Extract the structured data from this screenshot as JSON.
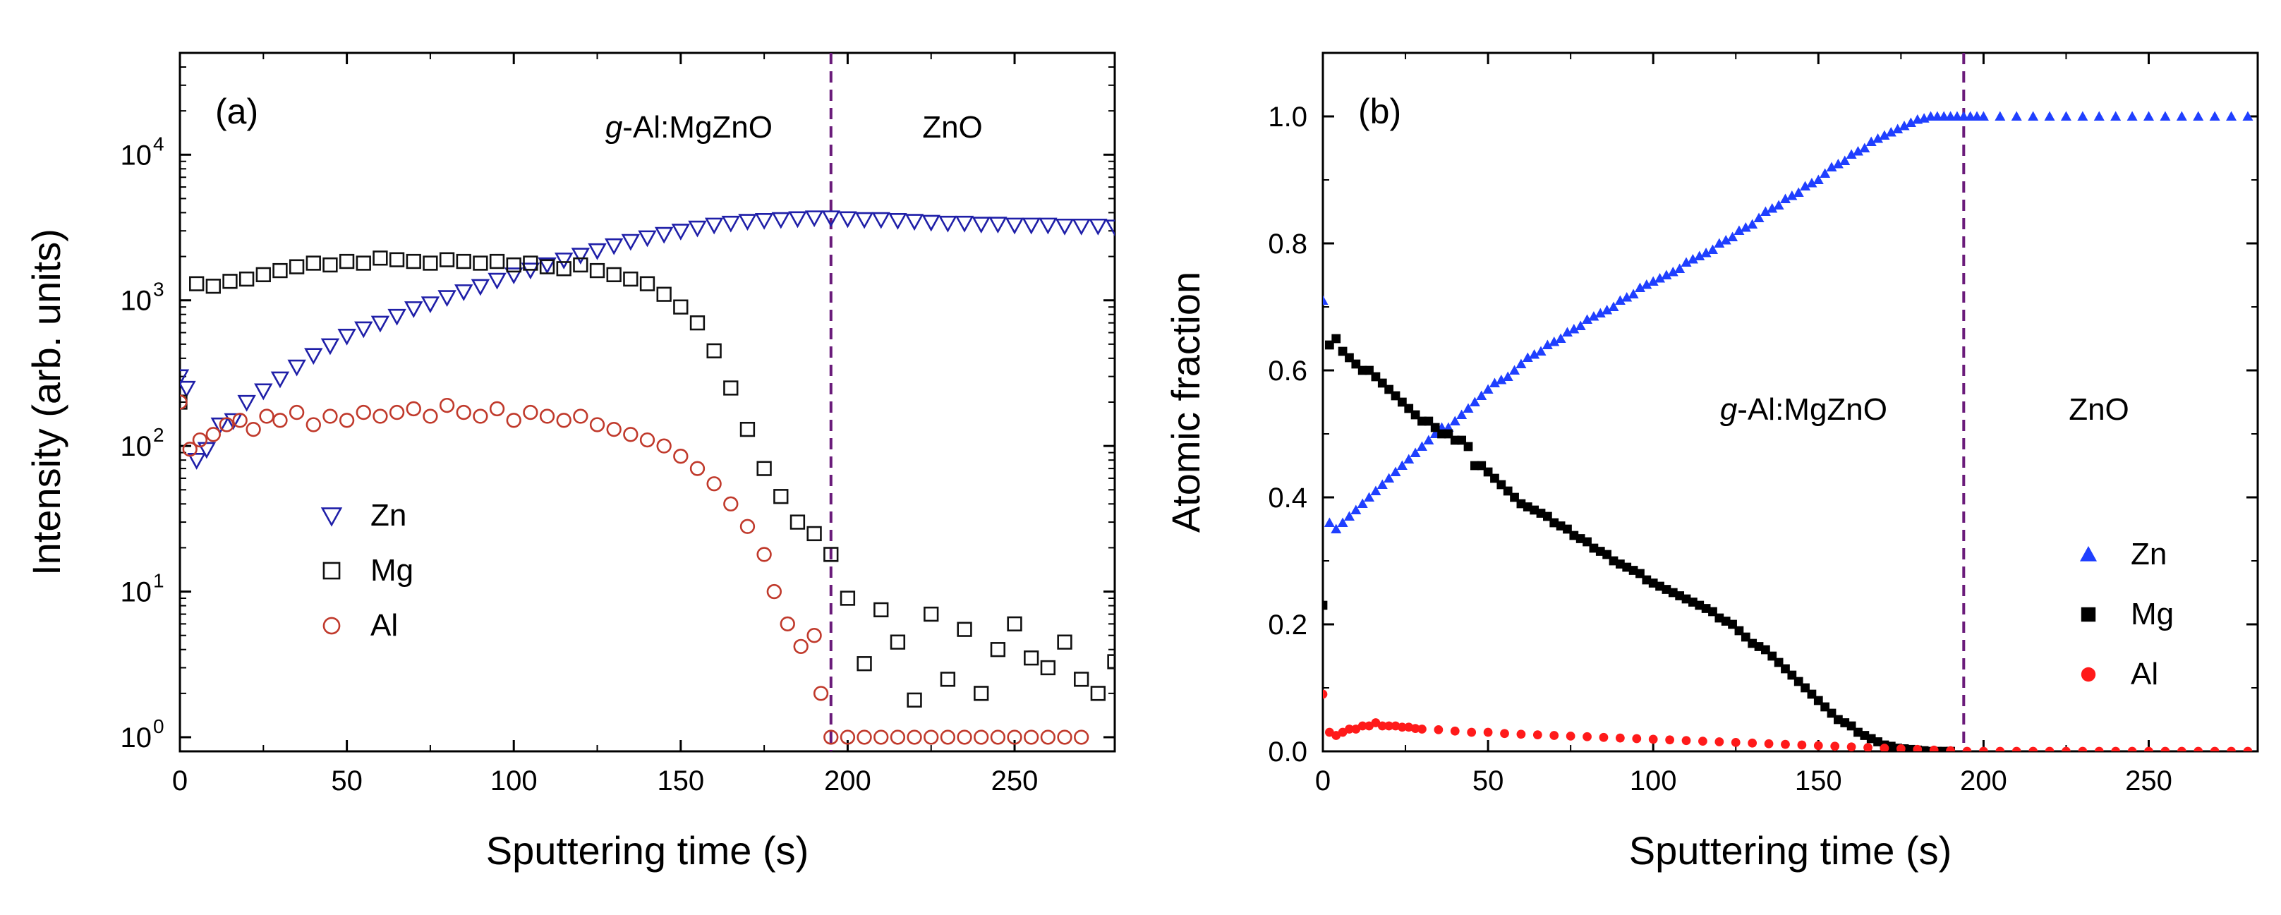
{
  "figure": {
    "panels": [
      "(a)",
      "(b)"
    ]
  },
  "chart_data": [
    {
      "type": "scatter",
      "panel_label": "(a)",
      "xlabel": "Sputtering time (s)",
      "ylabel": "Intensity (arb. units)",
      "xlim": [
        0,
        280
      ],
      "ylim": [
        0.8,
        50000
      ],
      "yscale": "log",
      "x_ticks": [
        0,
        50,
        100,
        150,
        200,
        250
      ],
      "x_tick_labels": [
        "0",
        "50",
        "100",
        "150",
        "200",
        "250"
      ],
      "y_ticks": [
        1,
        10,
        100,
        1000,
        10000
      ],
      "y_tick_bases": [
        "10",
        "10",
        "10",
        "10",
        "10"
      ],
      "y_tick_exponents": [
        "0",
        "1",
        "2",
        "3",
        "4"
      ],
      "boundary_x": 195,
      "regions": [
        {
          "prefix": "g",
          "rest": "-Al:MgZnO"
        },
        {
          "prefix": "",
          "rest": "ZnO"
        }
      ],
      "legend": [
        "Zn",
        "Mg",
        "Al"
      ],
      "legend_position": "center-left",
      "series": [
        {
          "name": "Zn",
          "marker": "open-triangle-down",
          "color": "#1f1fa8",
          "x": [
            0,
            2,
            5,
            8,
            12,
            16,
            20,
            25,
            30,
            35,
            40,
            45,
            50,
            55,
            60,
            65,
            70,
            75,
            80,
            85,
            90,
            95,
            100,
            105,
            110,
            115,
            120,
            125,
            130,
            135,
            140,
            145,
            150,
            155,
            160,
            165,
            170,
            175,
            180,
            185,
            190,
            195,
            200,
            205,
            210,
            215,
            220,
            225,
            230,
            235,
            240,
            245,
            250,
            255,
            260,
            265,
            270,
            275,
            280
          ],
          "y": [
            300,
            250,
            80,
            95,
            140,
            150,
            200,
            240,
            290,
            350,
            420,
            490,
            570,
            640,
            700,
            780,
            880,
            950,
            1050,
            1150,
            1250,
            1380,
            1500,
            1620,
            1760,
            1900,
            2050,
            2200,
            2380,
            2550,
            2700,
            2850,
            3000,
            3150,
            3300,
            3400,
            3500,
            3550,
            3600,
            3650,
            3700,
            3700,
            3650,
            3600,
            3600,
            3550,
            3500,
            3450,
            3400,
            3400,
            3350,
            3350,
            3300,
            3300,
            3300,
            3250,
            3250,
            3250,
            3200
          ]
        },
        {
          "name": "Mg",
          "marker": "open-square",
          "color": "#111111",
          "x": [
            0,
            5,
            10,
            15,
            20,
            25,
            30,
            35,
            40,
            45,
            50,
            55,
            60,
            65,
            70,
            75,
            80,
            85,
            90,
            95,
            100,
            105,
            110,
            115,
            120,
            125,
            130,
            135,
            140,
            145,
            150,
            155,
            160,
            165,
            170,
            175,
            180,
            185,
            190,
            195,
            200,
            205,
            210,
            215,
            220,
            225,
            230,
            235,
            240,
            245,
            250,
            255,
            260,
            265,
            270,
            275,
            280
          ],
          "y": [
            200,
            1300,
            1250,
            1350,
            1400,
            1500,
            1600,
            1700,
            1800,
            1750,
            1850,
            1800,
            1950,
            1900,
            1850,
            1800,
            1900,
            1850,
            1800,
            1850,
            1750,
            1800,
            1700,
            1650,
            1750,
            1600,
            1500,
            1400,
            1300,
            1100,
            900,
            700,
            450,
            250,
            130,
            70,
            45,
            30,
            25,
            18,
            9,
            3.2,
            7.5,
            4.5,
            1.8,
            7,
            2.5,
            5.5,
            2.0,
            4.0,
            6,
            3.5,
            3.0,
            4.5,
            2.5,
            2.0,
            3.3
          ]
        },
        {
          "name": "Al",
          "marker": "open-circle",
          "color": "#c0392b",
          "x": [
            0,
            3,
            6,
            10,
            14,
            18,
            22,
            26,
            30,
            35,
            40,
            45,
            50,
            55,
            60,
            65,
            70,
            75,
            80,
            85,
            90,
            95,
            100,
            105,
            110,
            115,
            120,
            125,
            130,
            135,
            140,
            145,
            150,
            155,
            160,
            165,
            170,
            175,
            178,
            182,
            186,
            190,
            192,
            195,
            200,
            205,
            210,
            215,
            220,
            225,
            230,
            235,
            240,
            245,
            250,
            255,
            260,
            265,
            270
          ],
          "y": [
            200,
            95,
            110,
            120,
            140,
            150,
            130,
            160,
            150,
            170,
            140,
            160,
            150,
            170,
            160,
            170,
            180,
            160,
            190,
            170,
            160,
            180,
            150,
            170,
            160,
            150,
            160,
            140,
            130,
            120,
            110,
            100,
            85,
            70,
            55,
            40,
            28,
            18,
            10,
            6,
            4.2,
            5,
            2,
            1,
            1,
            1,
            1,
            1,
            1,
            1,
            1,
            1,
            1,
            1,
            1,
            1,
            1,
            1,
            1
          ]
        }
      ]
    },
    {
      "type": "scatter",
      "panel_label": "(b)",
      "xlabel": "Sputtering time (s)",
      "ylabel": "Atomic fraction",
      "xlim": [
        0,
        283
      ],
      "ylim": [
        0,
        1.1
      ],
      "x_ticks": [
        0,
        50,
        100,
        150,
        200,
        250
      ],
      "x_tick_labels": [
        "0",
        "50",
        "100",
        "150",
        "200",
        "250"
      ],
      "y_ticks": [
        0,
        0.2,
        0.4,
        0.6,
        0.8,
        1.0
      ],
      "y_tick_labels": [
        "0.0",
        "0.2",
        "0.4",
        "0.6",
        "0.8",
        "1.0"
      ],
      "boundary_x": 194,
      "regions": [
        {
          "prefix": "g",
          "rest": "-Al:MgZnO"
        },
        {
          "prefix": "",
          "rest": "ZnO"
        }
      ],
      "legend": [
        "Zn",
        "Mg",
        "Al"
      ],
      "legend_position": "bottom-right",
      "series": [
        {
          "name": "Zn",
          "marker": "filled-triangle-up",
          "color": "#1f3fff",
          "x": [
            0,
            2,
            4,
            6,
            8,
            10,
            12,
            14,
            16,
            18,
            20,
            22,
            24,
            26,
            28,
            30,
            32,
            34,
            36,
            38,
            40,
            42,
            44,
            46,
            48,
            50,
            52,
            54,
            56,
            58,
            60,
            62,
            64,
            66,
            68,
            70,
            72,
            74,
            76,
            78,
            80,
            82,
            84,
            86,
            88,
            90,
            92,
            94,
            96,
            98,
            100,
            102,
            104,
            106,
            108,
            110,
            112,
            114,
            116,
            118,
            120,
            122,
            124,
            126,
            128,
            130,
            132,
            134,
            136,
            138,
            140,
            142,
            144,
            146,
            148,
            150,
            152,
            154,
            156,
            158,
            160,
            162,
            164,
            166,
            168,
            170,
            172,
            174,
            176,
            178,
            180,
            182,
            184,
            186,
            188,
            190,
            192,
            194,
            196,
            198,
            200,
            205,
            210,
            215,
            220,
            225,
            230,
            235,
            240,
            245,
            250,
            255,
            260,
            265,
            270,
            275,
            280
          ],
          "y": [
            0.71,
            0.36,
            0.35,
            0.36,
            0.37,
            0.38,
            0.39,
            0.4,
            0.41,
            0.42,
            0.43,
            0.44,
            0.45,
            0.46,
            0.47,
            0.48,
            0.49,
            0.5,
            0.51,
            0.51,
            0.52,
            0.53,
            0.54,
            0.55,
            0.56,
            0.57,
            0.58,
            0.585,
            0.59,
            0.6,
            0.61,
            0.62,
            0.625,
            0.63,
            0.64,
            0.645,
            0.65,
            0.66,
            0.665,
            0.67,
            0.68,
            0.685,
            0.69,
            0.695,
            0.7,
            0.71,
            0.715,
            0.72,
            0.73,
            0.735,
            0.74,
            0.745,
            0.75,
            0.755,
            0.76,
            0.77,
            0.775,
            0.78,
            0.785,
            0.79,
            0.8,
            0.805,
            0.81,
            0.82,
            0.825,
            0.83,
            0.84,
            0.85,
            0.855,
            0.86,
            0.87,
            0.875,
            0.88,
            0.89,
            0.895,
            0.9,
            0.91,
            0.92,
            0.925,
            0.93,
            0.94,
            0.945,
            0.95,
            0.96,
            0.965,
            0.97,
            0.975,
            0.98,
            0.985,
            0.99,
            0.995,
            0.997,
            1.0,
            1.0,
            1.0,
            1.0,
            1.0,
            1.0,
            1.0,
            1.0,
            1.0,
            1.0,
            1.0,
            1.0,
            1.0,
            1.0,
            1.0,
            1.0,
            1.0,
            1.0,
            1.0,
            1.0,
            1.0,
            1.0,
            1.0,
            1.0,
            1.0
          ]
        },
        {
          "name": "Mg",
          "marker": "filled-square",
          "color": "#000000",
          "x": [
            0,
            2,
            4,
            6,
            8,
            10,
            12,
            14,
            16,
            18,
            20,
            22,
            24,
            26,
            28,
            30,
            32,
            34,
            36,
            38,
            40,
            42,
            44,
            46,
            48,
            50,
            52,
            54,
            56,
            58,
            60,
            62,
            64,
            66,
            68,
            70,
            72,
            74,
            76,
            78,
            80,
            82,
            84,
            86,
            88,
            90,
            92,
            94,
            96,
            98,
            100,
            102,
            104,
            106,
            108,
            110,
            112,
            114,
            116,
            118,
            120,
            122,
            124,
            126,
            128,
            130,
            132,
            134,
            136,
            138,
            140,
            142,
            144,
            146,
            148,
            150,
            152,
            154,
            156,
            158,
            160,
            162,
            164,
            166,
            168,
            170,
            172,
            174,
            176,
            178,
            180,
            182,
            184,
            186,
            188,
            190
          ],
          "y": [
            0.23,
            0.64,
            0.65,
            0.63,
            0.62,
            0.61,
            0.6,
            0.6,
            0.59,
            0.58,
            0.57,
            0.56,
            0.55,
            0.54,
            0.53,
            0.52,
            0.52,
            0.51,
            0.5,
            0.5,
            0.49,
            0.49,
            0.48,
            0.45,
            0.45,
            0.44,
            0.43,
            0.42,
            0.41,
            0.4,
            0.39,
            0.385,
            0.38,
            0.375,
            0.37,
            0.36,
            0.355,
            0.35,
            0.34,
            0.335,
            0.33,
            0.32,
            0.315,
            0.31,
            0.3,
            0.295,
            0.29,
            0.285,
            0.28,
            0.27,
            0.265,
            0.26,
            0.255,
            0.25,
            0.245,
            0.24,
            0.235,
            0.23,
            0.225,
            0.22,
            0.21,
            0.205,
            0.2,
            0.19,
            0.18,
            0.17,
            0.165,
            0.16,
            0.15,
            0.14,
            0.13,
            0.12,
            0.11,
            0.1,
            0.09,
            0.08,
            0.07,
            0.06,
            0.05,
            0.045,
            0.04,
            0.03,
            0.025,
            0.02,
            0.015,
            0.01,
            0.008,
            0.005,
            0.004,
            0.003,
            0.002,
            0.001,
            0.0,
            0.0,
            0.0,
            0.0
          ]
        },
        {
          "name": "Al",
          "marker": "filled-circle",
          "color": "#ff1a1a",
          "x": [
            0,
            2,
            4,
            6,
            8,
            10,
            12,
            14,
            16,
            18,
            20,
            22,
            24,
            26,
            28,
            30,
            35,
            40,
            45,
            50,
            55,
            60,
            65,
            70,
            75,
            80,
            85,
            90,
            95,
            100,
            105,
            110,
            115,
            120,
            125,
            130,
            135,
            140,
            145,
            150,
            155,
            160,
            165,
            170,
            175,
            180,
            185,
            190,
            195,
            200,
            205,
            210,
            215,
            220,
            225,
            230,
            235,
            240,
            245,
            250,
            255,
            260,
            265,
            270,
            275,
            280
          ],
          "y": [
            0.09,
            0.03,
            0.025,
            0.03,
            0.035,
            0.035,
            0.04,
            0.04,
            0.045,
            0.04,
            0.04,
            0.04,
            0.038,
            0.038,
            0.036,
            0.035,
            0.034,
            0.032,
            0.03,
            0.03,
            0.028,
            0.027,
            0.026,
            0.025,
            0.024,
            0.023,
            0.022,
            0.021,
            0.02,
            0.019,
            0.018,
            0.017,
            0.016,
            0.015,
            0.014,
            0.013,
            0.012,
            0.011,
            0.01,
            0.009,
            0.008,
            0.007,
            0.006,
            0.005,
            0.004,
            0.003,
            0.002,
            0.001,
            0.0,
            0.0,
            0.0,
            0.0,
            0.0,
            0.0,
            0.0,
            0.0,
            0.0,
            0.0,
            0.0,
            0.0,
            0.0,
            0.0,
            0.0,
            0.0,
            0.0,
            0.0
          ]
        }
      ]
    }
  ]
}
